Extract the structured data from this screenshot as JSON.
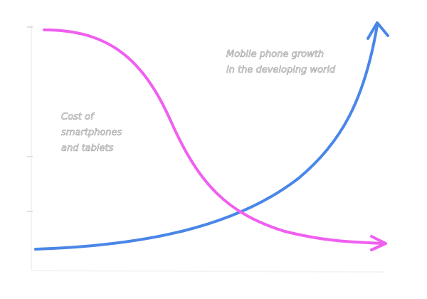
{
  "annotations": [
    {
      "lines": [
        "Mobile phone growth",
        "in the developing world"
      ]
    },
    {
      "lines": [
        "Cost of",
        "smartphones",
        "and tablets"
      ]
    }
  ]
}
